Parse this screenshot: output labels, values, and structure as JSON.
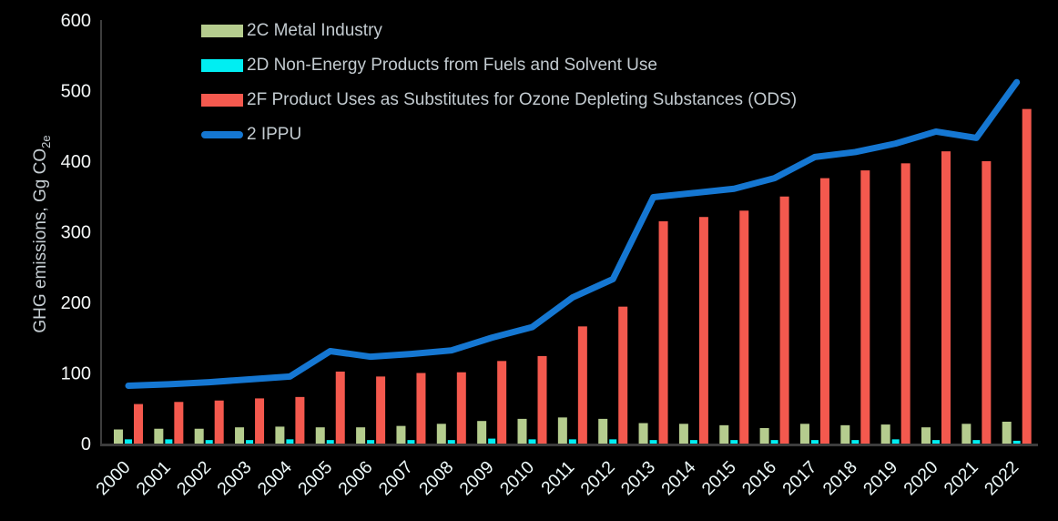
{
  "chart_data": {
    "type": "bar+line",
    "title": "",
    "categories": [
      "2000",
      "2001",
      "2002",
      "2003",
      "2004",
      "2005",
      "2006",
      "2007",
      "2008",
      "2009",
      "2010",
      "2011",
      "2012",
      "2013",
      "2014",
      "2015",
      "2016",
      "2017",
      "2018",
      "2019",
      "2020",
      "2021",
      "2022"
    ],
    "series": [
      {
        "name": "2C Metal Industry",
        "type": "bar",
        "color": "#b5cc8e",
        "values": [
          20,
          21,
          21,
          23,
          24,
          23,
          23,
          25,
          28,
          32,
          35,
          37,
          35,
          29,
          28,
          26,
          22,
          28,
          26,
          27,
          23,
          28,
          31
        ]
      },
      {
        "name": "2D Non-Energy Products from Fuels and Solvent Use",
        "type": "bar",
        "color": "#00eef2",
        "values": [
          6,
          6,
          5,
          5,
          6,
          5,
          5,
          5,
          5,
          7,
          6,
          6,
          6,
          5,
          5,
          5,
          5,
          5,
          5,
          6,
          5,
          5,
          4
        ]
      },
      {
        "name": "2F Product Uses as Substitutes for Ozone Depleting Substances (ODS)",
        "type": "bar",
        "color": "#f4594e",
        "values": [
          56,
          59,
          61,
          64,
          66,
          102,
          95,
          100,
          101,
          117,
          124,
          166,
          194,
          315,
          321,
          330,
          350,
          376,
          387,
          397,
          414,
          400,
          474
        ]
      },
      {
        "name": "2 IPPU",
        "type": "line",
        "color": "#1577d2",
        "values": [
          82,
          84,
          87,
          91,
          95,
          131,
          123,
          127,
          132,
          150,
          165,
          207,
          233,
          349,
          355,
          361,
          376,
          406,
          413,
          425,
          442,
          433,
          512
        ]
      }
    ],
    "xlabel": "",
    "ylabel_prefix": "GHG emissions, Gg CO",
    "ylabel_sub": "2e",
    "ylim": [
      0,
      600
    ],
    "yticks": [
      0,
      100,
      200,
      300,
      400,
      500,
      600
    ],
    "grid": false,
    "legend_position": "top-left-inside",
    "colors": {
      "background": "#000000",
      "axis_line": "#3d3d3d",
      "y_tick_label": "#f3f6f6",
      "x_tick_label": "#eefafa",
      "legend_text": "#c3cbd0",
      "ylabel_text": "#c6ced3"
    }
  }
}
